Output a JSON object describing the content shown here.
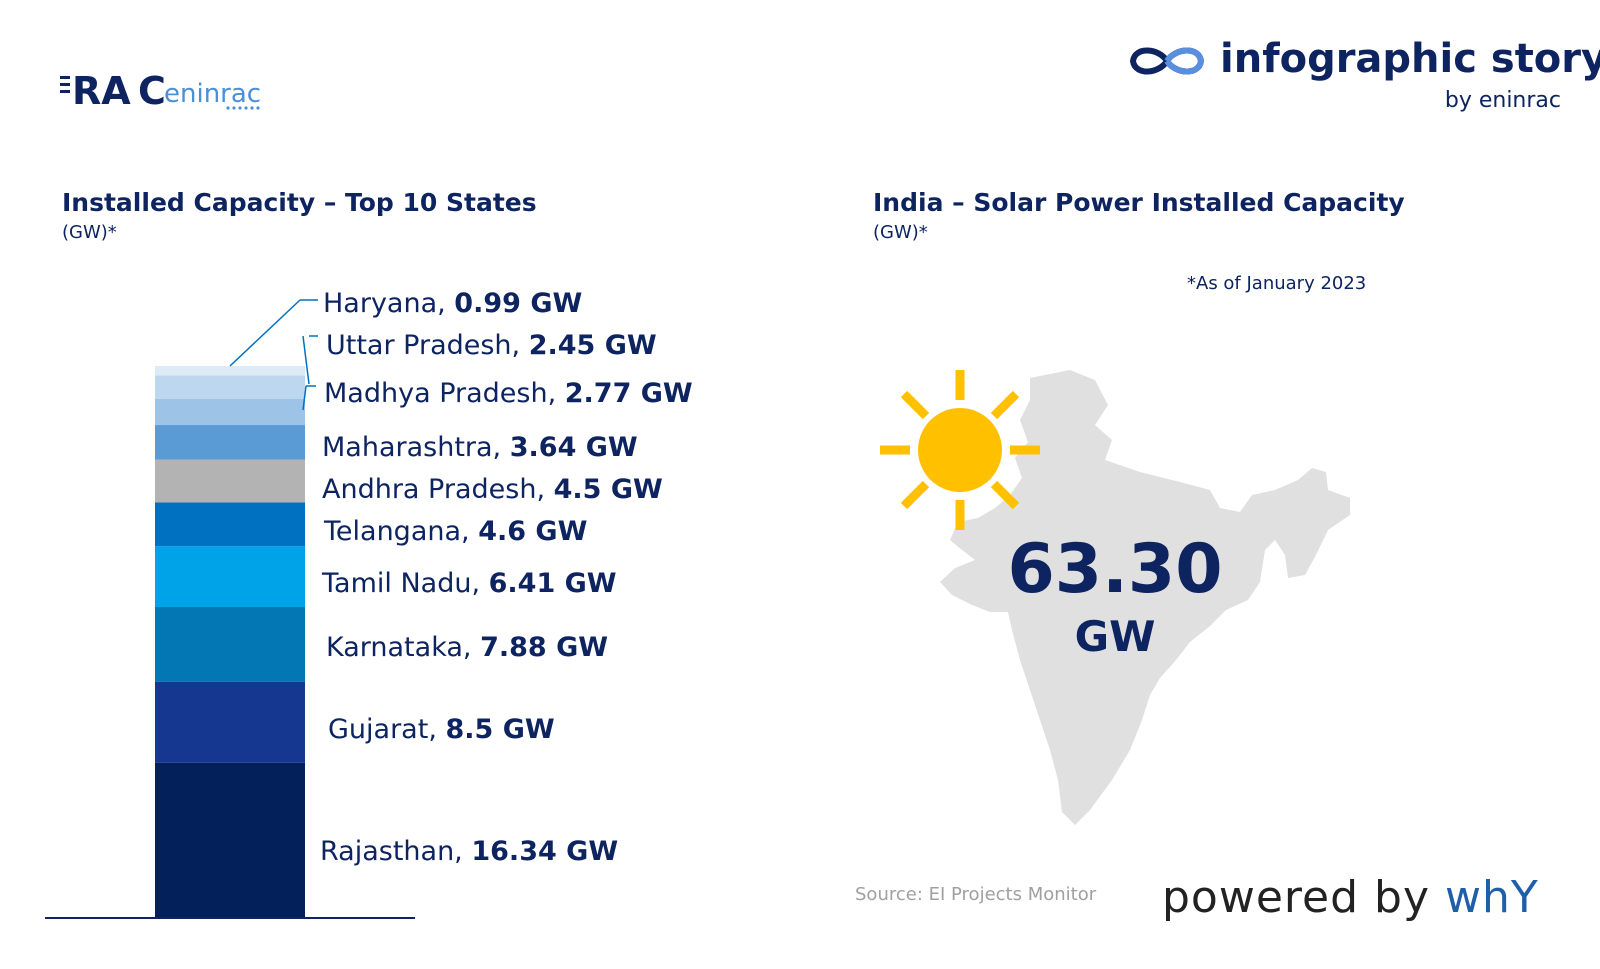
{
  "brand": {
    "left_logo_text": "RACeninrac",
    "title": "infographic story",
    "subtitle": "by eninrac"
  },
  "left_chart": {
    "title": "Installed Capacity – Top 10 States",
    "unit": "(GW)*"
  },
  "right_chart": {
    "title": "India – Solar Power Installed Capacity",
    "unit": "(GW)*",
    "date_note": "*As of January 2023",
    "total_value": "63.30",
    "total_unit": "GW"
  },
  "chart_data": {
    "type": "bar",
    "stacked": true,
    "categories": [
      "Rajasthan",
      "Gujarat",
      "Karnataka",
      "Tamil Nadu",
      "Telangana",
      "Andhra Pradesh",
      "Maharashtra",
      "Madhya Pradesh",
      "Uttar Pradesh",
      "Haryana"
    ],
    "values": [
      16.34,
      8.5,
      7.88,
      6.41,
      4.6,
      4.5,
      3.64,
      2.77,
      2.45,
      0.99
    ],
    "labels": [
      {
        "name": "Rajasthan",
        "value": "16.34 GW"
      },
      {
        "name": "Gujarat",
        "value": "8.5 GW"
      },
      {
        "name": "Karnataka",
        "value": "7.88 GW"
      },
      {
        "name": "Tamil Nadu",
        "value": "6.41 GW"
      },
      {
        "name": "Telangana",
        "value": "4.6 GW"
      },
      {
        "name": "Andhra Pradesh",
        "value": "4.5 GW"
      },
      {
        "name": "Maharashtra",
        "value": "3.64 GW"
      },
      {
        "name": "Madhya Pradesh",
        "value": "2.77 GW"
      },
      {
        "name": "Uttar Pradesh",
        "value": "2.45 GW"
      },
      {
        "name": "Haryana",
        "value": "0.99 GW"
      }
    ],
    "colors": [
      "#03205a",
      "#16378f",
      "#0277b3",
      "#00a3e8",
      "#0070c0",
      "#b3b3b3",
      "#5b9bd5",
      "#9dc3e6",
      "#bdd7ee",
      "#deebf7"
    ]
  },
  "source": "Source: EI Projects Monitor",
  "powered": {
    "prefix": "powered by ",
    "brand": "whY"
  }
}
